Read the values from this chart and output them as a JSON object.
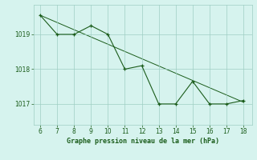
{
  "x": [
    6,
    7,
    8,
    9,
    10,
    11,
    12,
    13,
    14,
    15,
    16,
    17,
    18
  ],
  "y": [
    1019.55,
    1019.0,
    1019.0,
    1019.25,
    1019.0,
    1018.0,
    1018.1,
    1017.0,
    1017.0,
    1017.65,
    1017.0,
    1017.0,
    1017.1
  ],
  "trend_x": [
    6,
    18
  ],
  "trend_y": [
    1019.55,
    1017.05
  ],
  "line_color": "#1a5c1a",
  "bg_color": "#d6f3ee",
  "grid_color": "#9ecfc3",
  "xlabel": "Graphe pression niveau de la mer (hPa)",
  "xlabel_color": "#1a5c1a",
  "yticks": [
    1017,
    1018,
    1019
  ],
  "xticks": [
    6,
    7,
    8,
    9,
    10,
    11,
    12,
    13,
    14,
    15,
    16,
    17,
    18
  ],
  "ylim": [
    1016.4,
    1019.85
  ],
  "xlim": [
    5.6,
    18.5
  ],
  "tick_fontsize": 5.5,
  "xlabel_fontsize": 6.0
}
